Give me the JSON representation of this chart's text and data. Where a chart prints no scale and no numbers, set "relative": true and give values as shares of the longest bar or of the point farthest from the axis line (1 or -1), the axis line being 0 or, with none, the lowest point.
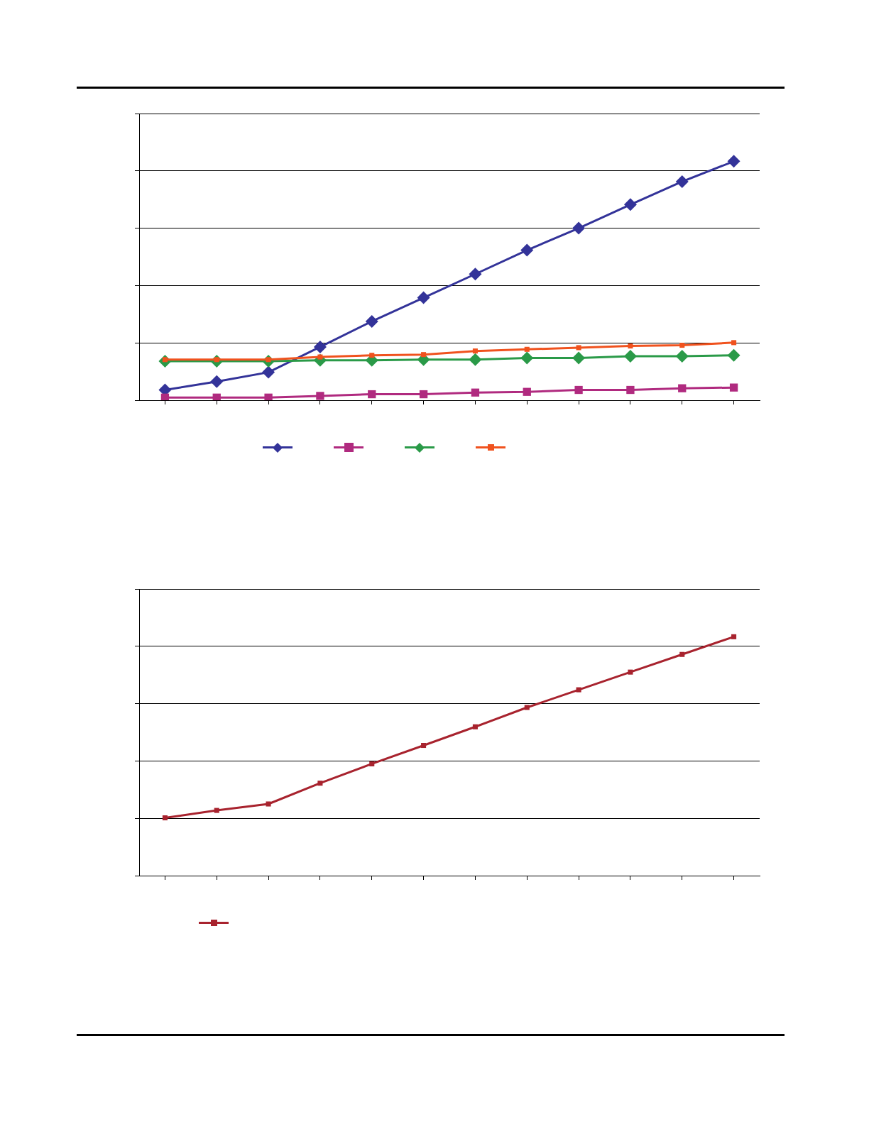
{
  "chart_data": [
    {
      "type": "line",
      "relative": true,
      "categories": [
        null,
        null,
        null,
        null,
        null,
        null,
        null,
        null,
        null,
        null,
        null,
        null
      ],
      "grid": "y",
      "tick_labels": false,
      "series": [
        {
          "color": "#333399",
          "marker": "diamond",
          "values": [
            0.043,
            0.078,
            0.117,
            0.223,
            0.33,
            0.429,
            0.528,
            0.628,
            0.72,
            0.819,
            0.915,
            1
          ]
        },
        {
          "color": "#b02a7f",
          "marker": "square",
          "values": [
            0.011,
            0.011,
            0.011,
            0.018,
            0.025,
            0.025,
            0.032,
            0.035,
            0.043,
            0.043,
            0.05,
            0.053
          ]
        },
        {
          "color": "#2a9a48",
          "marker": "diamond",
          "values": [
            0.163,
            0.163,
            0.163,
            0.167,
            0.167,
            0.17,
            0.17,
            0.177,
            0.177,
            0.184,
            0.184,
            0.188
          ]
        },
        {
          "color": "#f0521e",
          "marker": "square",
          "values": [
            0.17,
            0.17,
            0.17,
            0.181,
            0.188,
            0.191,
            0.206,
            0.213,
            0.22,
            0.227,
            0.23,
            0.241
          ]
        }
      ]
    },
    {
      "type": "line",
      "relative": true,
      "categories": [
        null,
        null,
        null,
        null,
        null,
        null,
        null,
        null,
        null,
        null,
        null,
        null
      ],
      "grid": "y",
      "tick_labels": false,
      "series": [
        {
          "color": "#a8232e",
          "marker": "square",
          "values": [
            0.242,
            0.273,
            0.3,
            0.387,
            0.468,
            0.545,
            0.623,
            0.704,
            0.778,
            0.852,
            0.926,
            1
          ]
        }
      ]
    }
  ]
}
